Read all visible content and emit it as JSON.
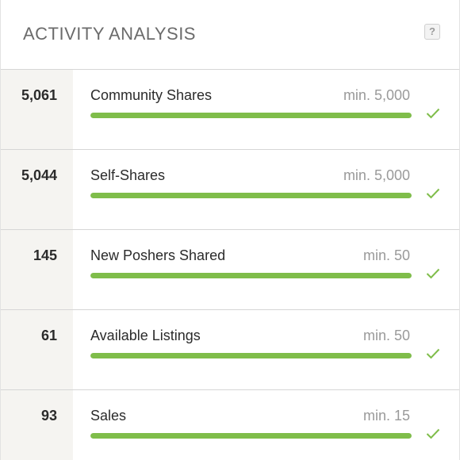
{
  "header": {
    "title": "ACTIVITY ANALYSIS",
    "help_label": "?"
  },
  "colors": {
    "bar_fill": "#7fbd4a",
    "check": "#7fbd4a"
  },
  "rows": [
    {
      "count": "5,061",
      "label": "Community Shares",
      "min": "min. 5,000",
      "progress": 1.0,
      "icon": "check-icon"
    },
    {
      "count": "5,044",
      "label": "Self-Shares",
      "min": "min. 5,000",
      "progress": 1.0,
      "icon": "check-icon"
    },
    {
      "count": "145",
      "label": "New Poshers Shared",
      "min": "min. 50",
      "progress": 1.0,
      "icon": "check-icon"
    },
    {
      "count": "61",
      "label": "Available Listings",
      "min": "min. 50",
      "progress": 1.0,
      "icon": "check-icon"
    },
    {
      "count": "93",
      "label": "Sales",
      "min": "min. 15",
      "progress": 1.0,
      "icon": "check-icon"
    }
  ]
}
